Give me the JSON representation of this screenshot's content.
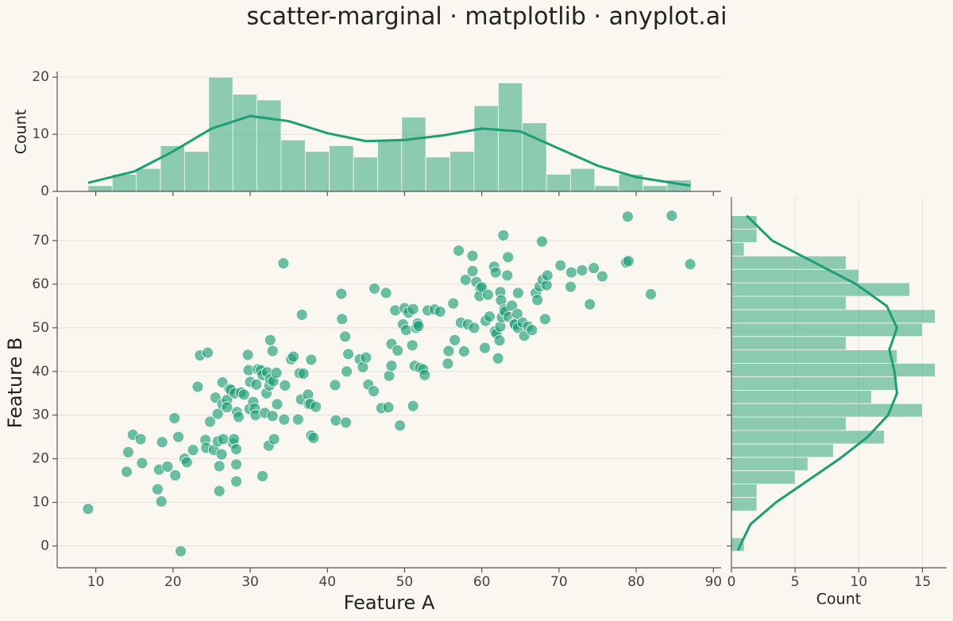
{
  "chart_data": [
    {
      "type": "scatter",
      "title": "scatter-marginal · matplotlib · anyplot.ai",
      "x_label": "Feature A",
      "y_label": "Feature B",
      "color": "#1d9e74",
      "grid": true,
      "xlim": [
        5,
        91
      ],
      "xticks": [
        10,
        20,
        30,
        40,
        50,
        60,
        70,
        80,
        90
      ],
      "ylim": [
        -5,
        80
      ],
      "yticks": [
        0,
        10,
        20,
        30,
        40,
        50,
        60,
        70
      ],
      "x": [
        9,
        14,
        14.2,
        14.8,
        15.8,
        16,
        18,
        18.2,
        18.5,
        18.6,
        19.3,
        20.2,
        20.3,
        20.7,
        21,
        21.5,
        21.8,
        22.6,
        23.2,
        23.5,
        24.2,
        24.3,
        24.5,
        24.8,
        25.3,
        25.5,
        25.8,
        25.8,
        26,
        26,
        26.3,
        26.4,
        26.4,
        26.5,
        27,
        27,
        27.3,
        27.5,
        27.8,
        27.9,
        28,
        28.2,
        28.2,
        28.2,
        28.3,
        28.5,
        28.8,
        29.2,
        29.7,
        29.8,
        29.9,
        30,
        30.4,
        30.6,
        30.7,
        30.8,
        31,
        31.4,
        31.6,
        31.6,
        31.9,
        32.1,
        32.2,
        32.4,
        32.5,
        32.6,
        32.6,
        32.9,
        32.9,
        33,
        33.1,
        33.4,
        33.5,
        34.3,
        34.4,
        34.5,
        35.3,
        35.6,
        36.2,
        36.4,
        36.6,
        36.7,
        36.9,
        37.5,
        37.6,
        37.9,
        37.8,
        37.9,
        38.2,
        38.5,
        41,
        41.1,
        41.8,
        41.9,
        42.3,
        42.4,
        42.5,
        42.7,
        44.2,
        44.6,
        45,
        45.3,
        46,
        46.1,
        47,
        47.6,
        47.9,
        48,
        48.3,
        48.3,
        48.8,
        49.1,
        49.4,
        49.8,
        50,
        50.2,
        50.5,
        51,
        51.1,
        51.1,
        51.3,
        51.5,
        51.7,
        51.8,
        52,
        52.4,
        52.6,
        53,
        53.9,
        54.6,
        55.6,
        55.7,
        56.3,
        56.5,
        57,
        57.3,
        57.7,
        57.9,
        58.2,
        58.8,
        58.8,
        59,
        59.3,
        59.8,
        59.7,
        60,
        60.4,
        60.5,
        60.8,
        61,
        61.6,
        61.7,
        61.8,
        61.9,
        62.1,
        62.3,
        62.4,
        62.4,
        62.5,
        62.6,
        62.8,
        62.9,
        63,
        63.3,
        63.4,
        63.5,
        63.9,
        64.2,
        64.3,
        64.6,
        64.7,
        64.7,
        65.3,
        65.5,
        66,
        66.5,
        67,
        67.2,
        67.5,
        67.8,
        67.9,
        68.2,
        68.4,
        68.5,
        70.2,
        71.5,
        71.6,
        73,
        74,
        74.5,
        75.6,
        78.7,
        78.9,
        79,
        81.9,
        84.6,
        87
      ],
      "values": [
        8.5,
        17,
        21.5,
        25.5,
        24.5,
        19,
        13,
        17.5,
        10.2,
        23.8,
        18.2,
        29.3,
        16.2,
        25,
        -1.2,
        20,
        19.2,
        22,
        36.5,
        43.7,
        24.3,
        22.5,
        44.3,
        28.5,
        22,
        34,
        24,
        30.3,
        18.3,
        12.6,
        21,
        32.5,
        37.5,
        24.5,
        33.5,
        31.8,
        36,
        35.8,
        23.5,
        24.5,
        35,
        18.7,
        14.8,
        22.2,
        30.7,
        29.6,
        35.2,
        34.7,
        43.8,
        40.3,
        31.4,
        37.6,
        33,
        31.5,
        30,
        37,
        40.5,
        40.3,
        39.2,
        16,
        30.5,
        35,
        39.8,
        23,
        36.8,
        38.2,
        47.2,
        44.7,
        29.8,
        37.8,
        24.5,
        39.7,
        32.5,
        64.8,
        29,
        36.8,
        42.8,
        43.4,
        29,
        39.6,
        33.6,
        53,
        39.5,
        34.7,
        32.5,
        42.7,
        32.6,
        25.3,
        24.8,
        31.9,
        36.9,
        28.8,
        57.8,
        52,
        48,
        28.3,
        40,
        44,
        42.8,
        41,
        43.2,
        37,
        35.5,
        59,
        31.6,
        58,
        31.8,
        39,
        46.3,
        41.3,
        54,
        44.8,
        27.6,
        50.8,
        54.5,
        49.5,
        53.5,
        46,
        32.1,
        54.3,
        41.3,
        50,
        51,
        50.4,
        40.8,
        40.5,
        39.2,
        54,
        54.2,
        53.7,
        41.8,
        44.7,
        55.6,
        47.2,
        67.7,
        51.2,
        44.6,
        61,
        50.8,
        66.5,
        63,
        50,
        60.5,
        59,
        57.3,
        59.3,
        45.4,
        51.6,
        57.6,
        52.6,
        64,
        49.2,
        62.7,
        48.7,
        43,
        47.1,
        58.2,
        50.3,
        56.3,
        52.4,
        71.2,
        54.2,
        53.7,
        62,
        66.2,
        52.5,
        55.1,
        51,
        50.8,
        53.2,
        50,
        58,
        51.2,
        48.2,
        50.3,
        49.5,
        58,
        56.4,
        59.5,
        69.8,
        61,
        52,
        59.8,
        62,
        64.3,
        59.4,
        62.7,
        63.2,
        55.4,
        63.7,
        61.8,
        65,
        75.5,
        65.3,
        57.7,
        75.7,
        64.6
      ]
    },
    {
      "type": "histogram",
      "orientation": "vertical",
      "y_label": "Count",
      "color": "#1d9e74",
      "grid": true,
      "xlim": [
        5,
        91
      ],
      "ylim": [
        0,
        21
      ],
      "yticks": [
        0,
        10,
        20
      ],
      "bins": [
        9,
        12.13,
        15.25,
        18.38,
        21.5,
        24.63,
        27.75,
        30.88,
        34,
        37.13,
        40.25,
        43.38,
        46.5,
        49.63,
        52.75,
        55.88,
        59,
        62.13,
        65.25,
        68.38,
        71.5,
        74.63,
        77.75,
        80.88,
        84,
        87.13
      ],
      "counts": [
        1,
        3,
        4,
        8,
        7,
        20,
        17,
        16,
        9,
        7,
        8,
        6,
        9,
        13,
        6,
        7,
        15,
        19,
        12,
        3,
        4,
        1,
        3,
        1,
        2
      ],
      "kde": {
        "x": [
          9,
          15,
          20,
          25,
          30,
          35,
          40,
          45,
          50,
          55,
          60,
          65,
          70,
          75,
          80,
          87
        ],
        "values": [
          1.5,
          3.5,
          7,
          11,
          13.2,
          12.3,
          10.2,
          8.8,
          9,
          9.8,
          11,
          10.5,
          7.5,
          4.5,
          2.5,
          1
        ]
      }
    },
    {
      "type": "histogram",
      "orientation": "horizontal",
      "x_label": "Count",
      "color": "#1d9e74",
      "grid": true,
      "xlim": [
        0,
        16.9
      ],
      "xticks": [
        0,
        5,
        10,
        15
      ],
      "ylim": [
        -5,
        80
      ],
      "bins": [
        -1.2,
        1.88,
        4.95,
        8.03,
        11.1,
        14.18,
        17.26,
        20.33,
        23.41,
        26.48,
        29.56,
        32.64,
        35.71,
        38.79,
        41.86,
        44.94,
        48.02,
        51.09,
        54.17,
        57.24,
        60.32,
        63.4,
        66.47,
        69.55,
        72.62,
        75.7
      ],
      "counts": [
        1,
        0,
        0,
        2,
        2,
        5,
        6,
        8,
        12,
        9,
        15,
        11,
        13,
        16,
        13,
        9,
        15,
        16,
        9,
        14,
        10,
        9,
        1,
        2,
        2
      ],
      "kde": {
        "y": [
          -1,
          5,
          10,
          15,
          20,
          25,
          30,
          35,
          40,
          45,
          50,
          55,
          60,
          65,
          70,
          75.7
        ],
        "values": [
          0.5,
          1.5,
          3.5,
          6,
          8.5,
          10.7,
          12.3,
          13,
          12.8,
          12.4,
          13,
          12.2,
          9.8,
          6.5,
          3.2,
          1.2
        ]
      }
    }
  ]
}
